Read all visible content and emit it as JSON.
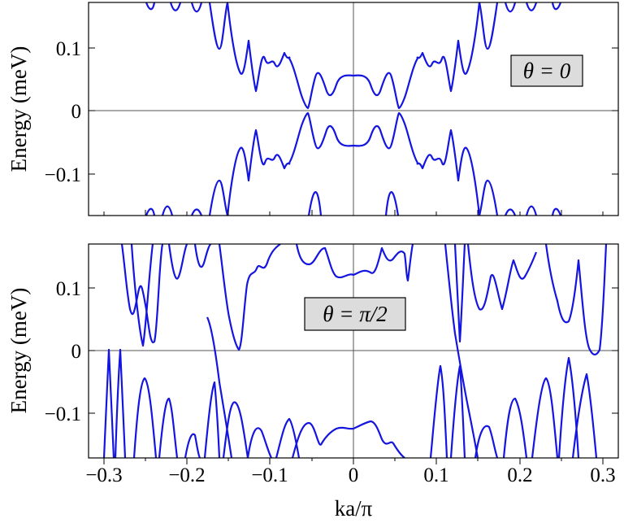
{
  "chart_data": [
    {
      "type": "line",
      "panel": "top",
      "annotation": "θ = 0",
      "ylabel": "Energy (meV)",
      "xlabel": "",
      "xlim": [
        -0.31,
        0.31
      ],
      "ylim": [
        -0.17,
        0.17
      ],
      "yticks": [
        0.1,
        0,
        -0.1
      ],
      "ytick_labels": [
        "0.1",
        "0",
        "−0.1"
      ],
      "grid": false,
      "reference_lines": [
        "x = 0",
        "y = 0"
      ],
      "series": [
        {
          "x": [
            -0.3,
            -0.25,
            -0.2,
            -0.15,
            -0.1,
            -0.07,
            -0.055,
            -0.04,
            -0.02,
            0,
            0.02,
            0.04,
            0.055,
            0.07,
            0.1,
            0.15,
            0.2,
            0.25,
            0.3
          ],
          "values": [
            0.17,
            0.17,
            0.165,
            0.15,
            0.115,
            0.06,
            0.003,
            0.06,
            0.055,
            0.055,
            0.055,
            0.06,
            0.003,
            0.06,
            0.115,
            0.15,
            0.165,
            0.17,
            0.17
          ]
        },
        {
          "x": [
            -0.3,
            -0.25,
            -0.2,
            -0.15,
            -0.1,
            -0.07,
            -0.055,
            -0.04,
            -0.02,
            0,
            0.02,
            0.04,
            0.055,
            0.07,
            0.1,
            0.15,
            0.2,
            0.25,
            0.3
          ],
          "values": [
            -0.17,
            -0.17,
            -0.165,
            -0.15,
            -0.115,
            -0.06,
            -0.003,
            -0.06,
            -0.055,
            -0.055,
            -0.055,
            -0.06,
            -0.003,
            -0.06,
            -0.115,
            -0.15,
            -0.165,
            -0.17,
            -0.17
          ]
        }
      ]
    },
    {
      "type": "line",
      "panel": "bottom",
      "annotation": "θ = π/2",
      "ylabel": "Energy (meV)",
      "xlabel": "ka/π",
      "xlim": [
        -0.31,
        0.31
      ],
      "ylim": [
        -0.17,
        0.17
      ],
      "xticks": [
        -0.3,
        -0.2,
        -0.1,
        0,
        0.1,
        0.2,
        0.3
      ],
      "xtick_labels": [
        "−0.3",
        "−0.2",
        "−0.1",
        "0",
        "0.1",
        "0.2",
        "0.3"
      ],
      "yticks": [
        0.1,
        0,
        -0.1
      ],
      "ytick_labels": [
        "0.1",
        "0",
        "−0.1"
      ],
      "grid": false,
      "reference_lines": [
        "x = 0",
        "y = 0"
      ],
      "series": [
        {
          "x": [
            -0.28,
            -0.25,
            -0.2,
            -0.15,
            -0.1,
            -0.06,
            -0.03,
            -0.015,
            0,
            0.015,
            0.03,
            0.06,
            0.1,
            0.12,
            0.15,
            0.2,
            0.25,
            0.28,
            0.295
          ],
          "values": [
            0.17,
            0.14,
            0.12,
            0.17,
            0.17,
            0.17,
            0.14,
            0.125,
            0.123,
            0.125,
            0.14,
            0.17,
            0.17,
            0.15,
            0.14,
            0.07,
            0.05,
            0.02,
            0.0
          ]
        },
        {
          "x": [
            -0.295,
            -0.28,
            -0.25,
            -0.2,
            -0.15,
            -0.12,
            -0.1,
            -0.06,
            -0.03,
            -0.015,
            0,
            0.015,
            0.03,
            0.06,
            0.1,
            0.15,
            0.2,
            0.25,
            0.28
          ],
          "values": [
            0.0,
            -0.02,
            -0.05,
            -0.07,
            -0.14,
            -0.15,
            -0.17,
            -0.17,
            -0.14,
            -0.125,
            -0.123,
            -0.11,
            -0.14,
            -0.17,
            -0.17,
            -0.17,
            -0.12,
            -0.14,
            -0.17
          ]
        }
      ]
    }
  ]
}
